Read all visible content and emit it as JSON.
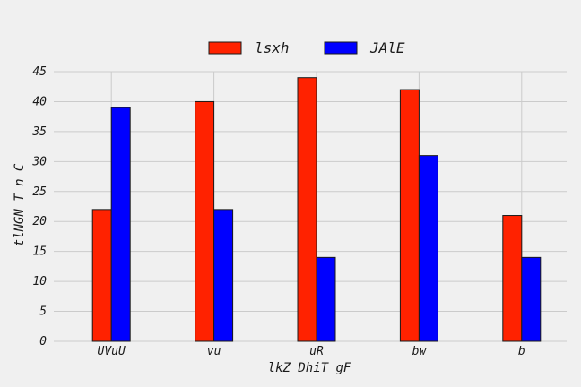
{
  "chart_data": {
    "type": "bar",
    "categories": [
      "UVuU",
      "vu",
      "uR",
      "bw",
      "b"
    ],
    "series": [
      {
        "name": "lsxh",
        "values": [
          22,
          40,
          44,
          42,
          21
        ],
        "color": "#ff2200"
      },
      {
        "name": "JAlE",
        "values": [
          39,
          22,
          14,
          31,
          14
        ],
        "color": "#0000ff"
      }
    ],
    "xlabel": "lkZ DhiT gF",
    "ylabel": "tlNGN T n  C",
    "ylim": [
      0,
      45
    ],
    "yticks": [
      0,
      5,
      10,
      15,
      20,
      25,
      30,
      35,
      40,
      45
    ],
    "grid": true,
    "legend_position": "top-center"
  }
}
